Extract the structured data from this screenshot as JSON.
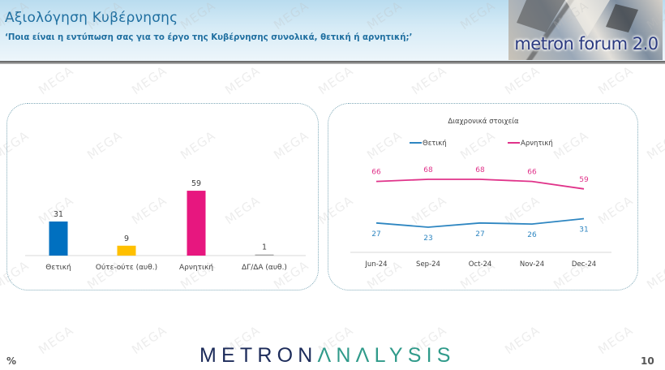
{
  "header": {
    "title": "Αξιολόγηση Κυβέρνησης",
    "question": "‘Ποια είναι η εντύπωση σας για το έργο της Κυβέρνησης συνολικά, θετική ή αρνητική;’",
    "logo_text": "metron forum 2.0"
  },
  "watermark_text": "MEGA",
  "footer": {
    "unit": "%",
    "brand_part1": "METRON",
    "brand_part2": "ΛNΛLYSIS",
    "page_number": "10"
  },
  "colors": {
    "positive": "#0070c0",
    "neutral": "#ffc000",
    "negative": "#e7177f",
    "dk": "#a6a6a6",
    "line_positive": "#2e86c1",
    "line_negative": "#e0338a",
    "title": "#1f6fa0"
  },
  "chart_data": [
    {
      "type": "bar",
      "title": "",
      "categories": [
        "Θετική",
        "Ούτε-ούτε (αυθ.)",
        "Αρνητική",
        "ΔΓ/ΔΑ (αυθ.)"
      ],
      "values": [
        31,
        9,
        59,
        1
      ],
      "labels": [
        "31",
        "9",
        "59",
        "1"
      ],
      "colors": [
        "#0070c0",
        "#ffc000",
        "#e7177f",
        "#a6a6a6"
      ],
      "xlabel": "",
      "ylabel": "%",
      "ylim": [
        0,
        80
      ],
      "grid": false,
      "legend": null
    },
    {
      "type": "line",
      "title": "Διαχρονικά στοιχεία",
      "categories": [
        "Jun-24",
        "Sep-24",
        "Oct-24",
        "Nov-24",
        "Dec-24"
      ],
      "series": [
        {
          "name": "Θετική",
          "values": [
            27,
            23,
            27,
            26,
            31
          ],
          "labels": [
            "27",
            "23",
            "27",
            "26",
            "31"
          ],
          "color": "#2e86c1"
        },
        {
          "name": "Αρνητική",
          "values": [
            66,
            68,
            68,
            66,
            59
          ],
          "labels": [
            "66",
            "68",
            "68",
            "66",
            "59"
          ],
          "color": "#e0338a"
        }
      ],
      "xlabel": "",
      "ylabel": "%",
      "legend_position": "top",
      "grid": false
    }
  ]
}
